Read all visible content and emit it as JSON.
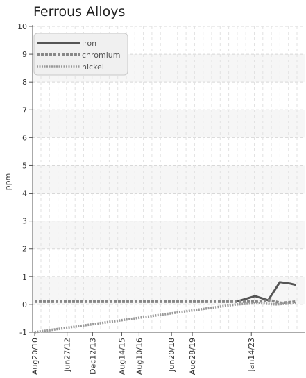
{
  "chart_data": {
    "type": "line",
    "title": "Ferrous Alloys",
    "xlabel": "",
    "ylabel": "ppm",
    "ylim": [
      -1,
      10
    ],
    "yticks": [
      -1,
      0,
      1,
      2,
      3,
      4,
      5,
      6,
      7,
      8,
      9,
      10
    ],
    "xlim": [
      "2010-08-20",
      "2026-02-15"
    ],
    "xticks": [
      {
        "label": "Aug20/10",
        "date": "2010-08-20"
      },
      {
        "label": "Jun27/12",
        "date": "2012-06-27"
      },
      {
        "label": "Dec12/13",
        "date": "2013-12-12"
      },
      {
        "label": "Aug14/15",
        "date": "2015-08-14"
      },
      {
        "label": "Aug10/16",
        "date": "2016-08-10"
      },
      {
        "label": "Jun20/18",
        "date": "2018-06-20"
      },
      {
        "label": "Aug28/19",
        "date": "2019-08-28"
      },
      {
        "label": "Jan14/23",
        "date": "2023-01-14"
      }
    ],
    "grid": true,
    "legend": "top-left",
    "series": [
      {
        "name": "iron",
        "color": "#555555",
        "style": "solid",
        "points": [
          {
            "x": "2022-03-01",
            "y": 0.1
          },
          {
            "x": "2023-04-01",
            "y": 0.3
          },
          {
            "x": "2024-01-01",
            "y": 0.15
          },
          {
            "x": "2024-09-01",
            "y": 0.8
          },
          {
            "x": "2025-04-01",
            "y": 0.75
          },
          {
            "x": "2025-08-01",
            "y": 0.7
          }
        ]
      },
      {
        "name": "chromium",
        "color": "#888888",
        "style": "dashed",
        "points": [
          {
            "x": "2010-08-20",
            "y": 0.1
          },
          {
            "x": "2022-03-01",
            "y": 0.1
          },
          {
            "x": "2023-06-01",
            "y": 0.1
          },
          {
            "x": "2024-02-01",
            "y": 0.15
          },
          {
            "x": "2024-10-01",
            "y": 0.05
          },
          {
            "x": "2025-08-01",
            "y": 0.1
          }
        ]
      },
      {
        "name": "nickel",
        "color": "#9a9a9a",
        "style": "dotted",
        "points": [
          {
            "x": "2010-08-20",
            "y": -1
          },
          {
            "x": "2022-03-01",
            "y": 0
          },
          {
            "x": "2023-06-01",
            "y": 0.05
          },
          {
            "x": "2024-06-01",
            "y": 0
          },
          {
            "x": "2025-08-01",
            "y": 0.05
          }
        ]
      }
    ]
  }
}
